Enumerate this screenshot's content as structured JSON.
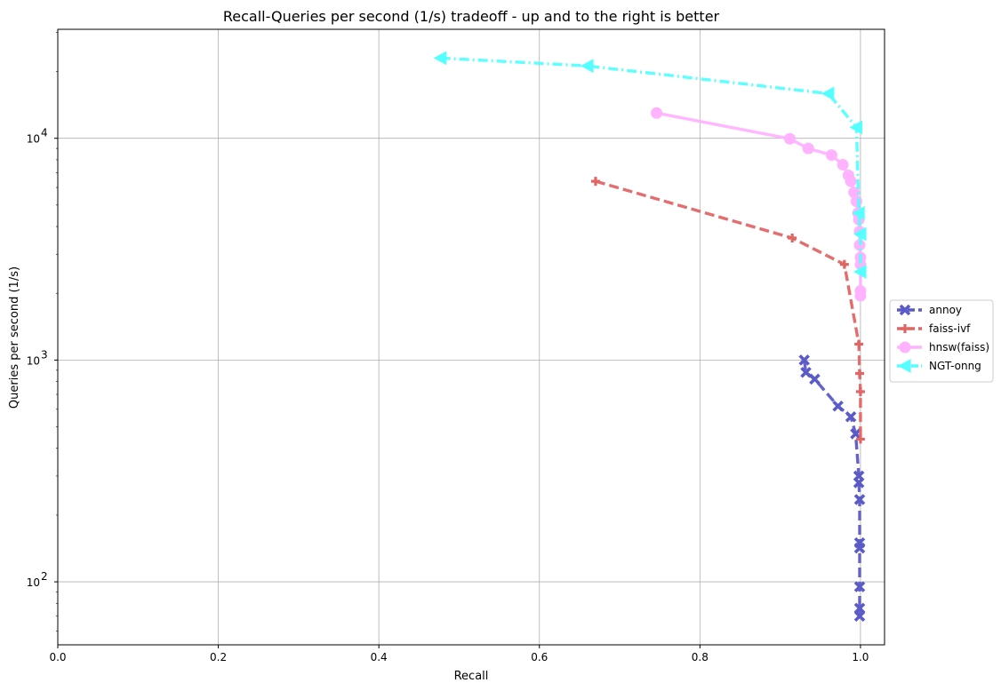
{
  "chart_data": {
    "type": "line",
    "title": "Recall-Queries per second (1/s) tradeoff - up and to the right is better",
    "xlabel": "Recall",
    "ylabel": "Queries per second (1/s)",
    "xscale": "linear",
    "yscale": "log",
    "xlim": [
      0.0,
      1.03
    ],
    "ylim": [
      52,
      31000
    ],
    "xticks": [
      0.0,
      0.2,
      0.4,
      0.6,
      0.8,
      1.0
    ],
    "xtick_labels": [
      "0.0",
      "0.2",
      "0.4",
      "0.6",
      "0.8",
      "1.0"
    ],
    "yticks": [
      100,
      1000,
      10000
    ],
    "ytick_labels": [
      "10",
      "10",
      "10"
    ],
    "ytick_exponents": [
      "2",
      "3",
      "4"
    ],
    "grid": true,
    "legend": "outside-right",
    "series": [
      {
        "name": "annoy",
        "color": "#5b5bc8",
        "linestyle": "dashed",
        "marker": "x",
        "points": [
          [
            0.93,
            1000
          ],
          [
            0.932,
            880
          ],
          [
            0.943,
            820
          ],
          [
            0.972,
            620
          ],
          [
            0.988,
            555
          ],
          [
            0.994,
            465
          ],
          [
            0.998,
            300
          ],
          [
            0.998,
            280
          ],
          [
            0.999,
            235
          ],
          [
            0.999,
            150
          ],
          [
            0.999,
            142
          ],
          [
            0.999,
            95
          ],
          [
            0.999,
            76
          ],
          [
            0.999,
            70
          ]
        ]
      },
      {
        "name": "faiss-ivf",
        "color": "#e06666",
        "linestyle": "dashed",
        "marker": "plus",
        "points": [
          [
            0.67,
            6400
          ],
          [
            0.915,
            3550
          ],
          [
            0.98,
            2700
          ],
          [
            0.998,
            1180
          ],
          [
            0.999,
            870
          ],
          [
            1.0,
            720
          ],
          [
            1.0,
            440
          ]
        ]
      },
      {
        "name": "hnsw(faiss)",
        "color": "#ffb3ff",
        "linestyle": "solid",
        "marker": "circle",
        "points": [
          [
            0.746,
            13000
          ],
          [
            0.912,
            9950
          ],
          [
            0.935,
            9000
          ],
          [
            0.964,
            8400
          ],
          [
            0.978,
            7600
          ],
          [
            0.985,
            6800
          ],
          [
            0.988,
            6400
          ],
          [
            0.992,
            5700
          ],
          [
            0.995,
            5200
          ],
          [
            0.997,
            4600
          ],
          [
            0.998,
            4300
          ],
          [
            0.999,
            3800
          ],
          [
            0.999,
            3300
          ],
          [
            1.0,
            2900
          ],
          [
            1.0,
            2700
          ],
          [
            1.0,
            2050
          ],
          [
            1.0,
            1950
          ]
        ]
      },
      {
        "name": "NGT-onng",
        "color": "#55ffff",
        "linestyle": "dashdot",
        "marker": "triangle-left",
        "points": [
          [
            0.477,
            23000
          ],
          [
            0.66,
            21200
          ],
          [
            0.96,
            15900
          ],
          [
            0.995,
            11200
          ],
          [
            0.998,
            4600
          ],
          [
            1.0,
            3700
          ],
          [
            1.0,
            2500
          ]
        ]
      }
    ]
  }
}
